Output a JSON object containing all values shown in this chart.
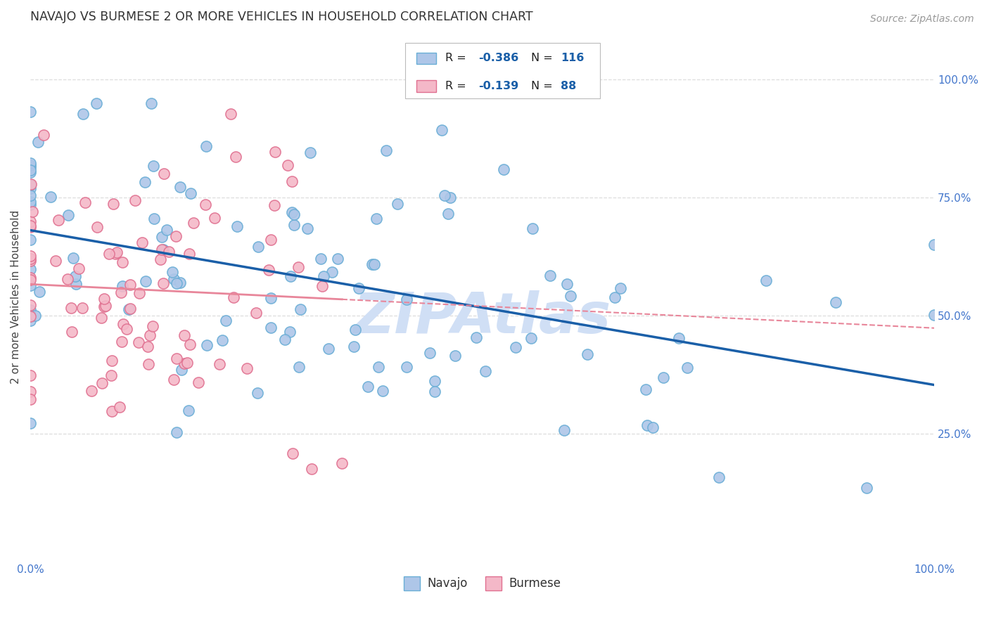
{
  "title": "NAVAJO VS BURMESE 2 OR MORE VEHICLES IN HOUSEHOLD CORRELATION CHART",
  "source": "Source: ZipAtlas.com",
  "ylabel": "2 or more Vehicles in Household",
  "ytick_labels": [
    "100.0%",
    "75.0%",
    "50.0%",
    "25.0%"
  ],
  "ytick_values": [
    1.0,
    0.75,
    0.5,
    0.25
  ],
  "xrange": [
    0.0,
    1.0
  ],
  "yrange": [
    -0.02,
    1.1
  ],
  "navajo_R": -0.386,
  "navajo_N": 116,
  "burmese_R": -0.139,
  "burmese_N": 88,
  "navajo_color": "#aec6e8",
  "navajo_edge": "#6aaed6",
  "burmese_color": "#f4b8c8",
  "burmese_edge": "#e07090",
  "navajo_line_color": "#1a5fa8",
  "burmese_line_color": "#e8869a",
  "watermark_color": "#d0dff5",
  "background_color": "#ffffff",
  "grid_color": "#dddddd",
  "title_color": "#333333",
  "source_color": "#999999",
  "tick_color": "#4477cc",
  "legend_R_color": "#222222",
  "legend_N_color": "#1a5fa8"
}
